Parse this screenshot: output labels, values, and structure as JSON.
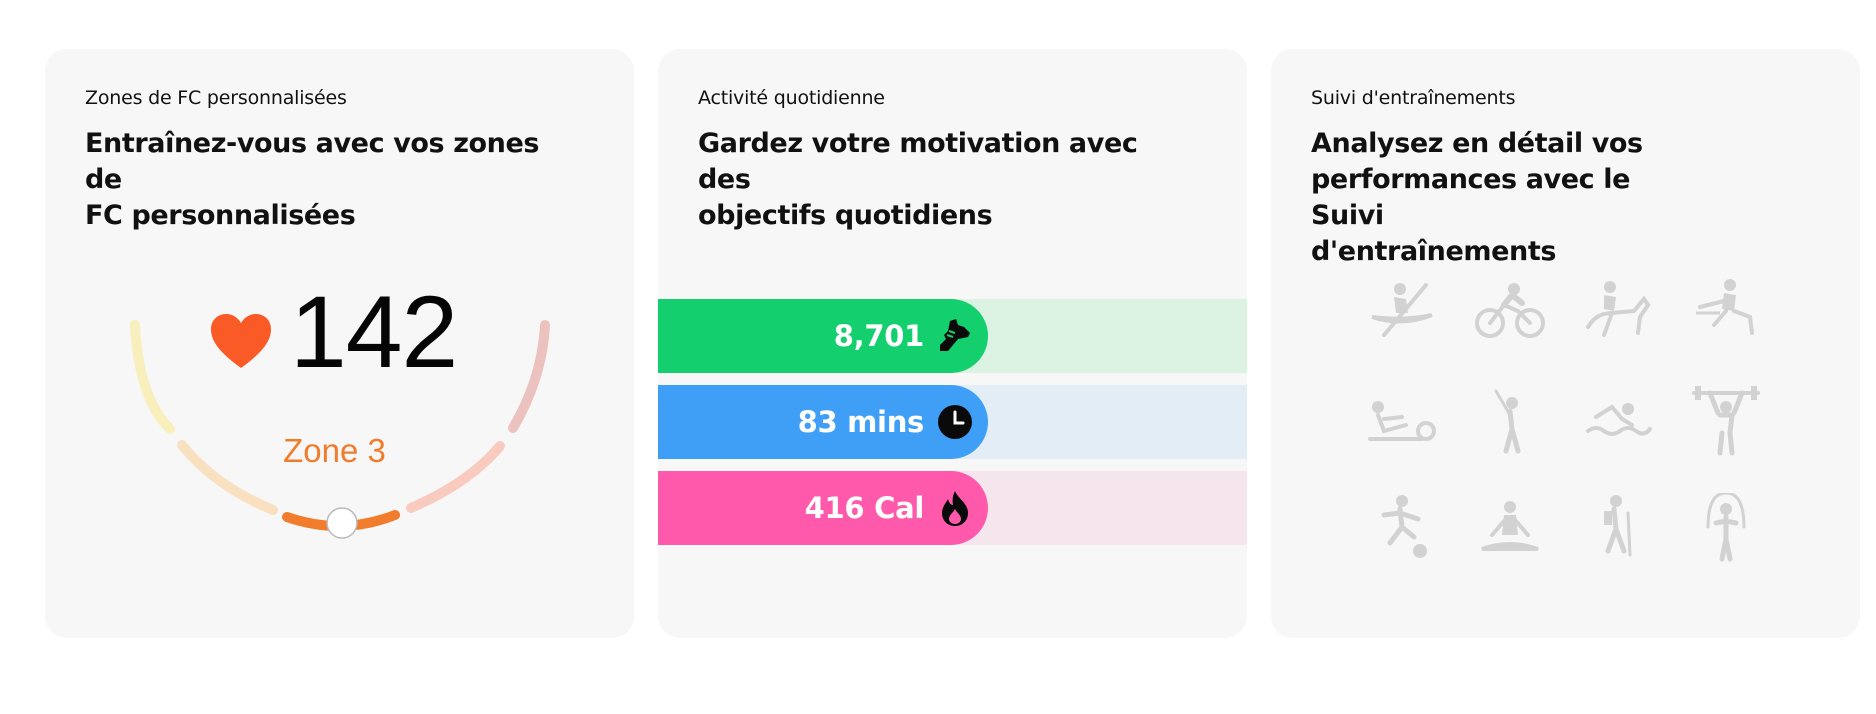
{
  "cards": {
    "hr_zones": {
      "eyebrow": "Zones de FC personnalisées",
      "headline_line1": "Entraînez-vous avec vos zones de",
      "headline_line2": "FC personnalisées",
      "heart_rate": "142",
      "zone": "Zone 3",
      "heart_icon": "heart-icon",
      "colors": {
        "heart": "#fa5a26",
        "zone_text": "#f07c2c",
        "active_zone": "#f07c2c"
      }
    },
    "daily_activity": {
      "eyebrow": "Activité quotidienne",
      "headline_line1": "Gardez votre motivation avec des",
      "headline_line2": "objectifs quotidiens",
      "bars": [
        {
          "value": "8,701",
          "icon": "shoe-icon",
          "color": "#13cf6e",
          "track": "#dcf2e3"
        },
        {
          "value": "83 mins",
          "icon": "clock-icon",
          "color": "#3f9ff6",
          "track": "#e3edf6"
        },
        {
          "value": "416 Cal",
          "icon": "flame-icon",
          "color": "#ff59ac",
          "track": "#f5e6ee"
        }
      ]
    },
    "workout_tracking": {
      "eyebrow": "Suivi d'entraînements",
      "headline_line1": "Analysez en détail vos",
      "headline_line2": "performances avec le Suivi",
      "headline_line3": "d'entraînements",
      "sport_icons": [
        "kayak-icon",
        "cycling-icon",
        "horse-riding-icon",
        "hurdles-icon",
        "rowing-machine-icon",
        "golf-icon",
        "swimming-icon",
        "weightlifting-icon",
        "soccer-icon",
        "yoga-icon",
        "hiking-icon",
        "jump-rope-icon"
      ],
      "icon_color": "#d2d2d2"
    }
  }
}
